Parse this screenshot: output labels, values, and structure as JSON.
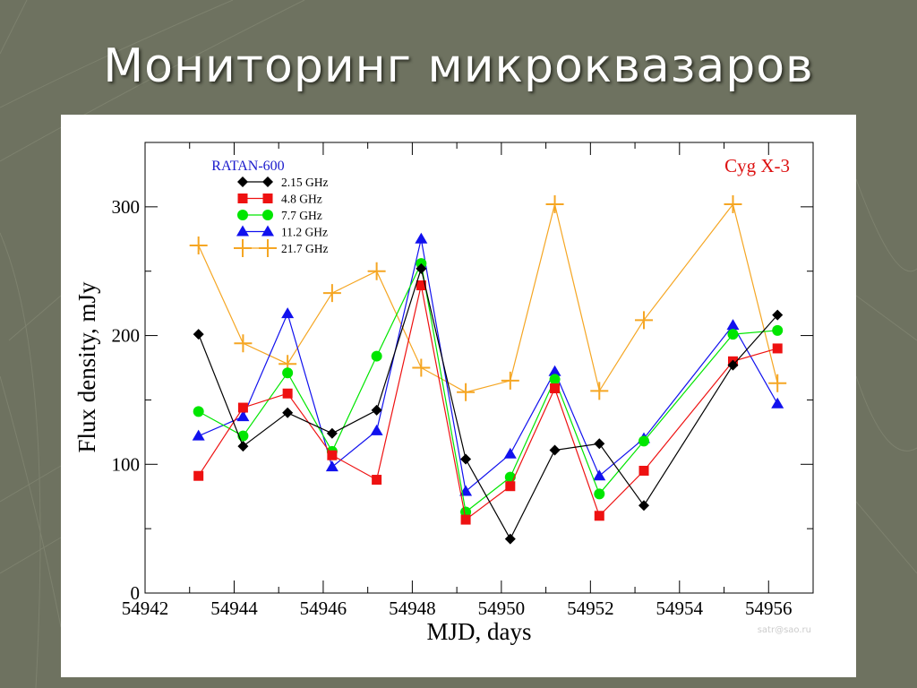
{
  "slide": {
    "title": "Мониторинг микроквазаров"
  },
  "colors": {
    "background": "#6e7260",
    "title_text": "#ffffff",
    "panel": "#ffffff"
  },
  "chart_data": {
    "type": "line",
    "source_label": "RATAN-600",
    "object_label": "Cyg X-3",
    "xlabel": "MJD, days",
    "ylabel": "Flux density, mJy",
    "xlim": [
      54942,
      54957
    ],
    "ylim": [
      0,
      350
    ],
    "x_ticks": [
      54942,
      54944,
      54946,
      54948,
      54950,
      54952,
      54954,
      54956
    ],
    "y_ticks": [
      0,
      100,
      200,
      300
    ],
    "watermark": "satr@sao.ru",
    "legend_position": "top-left",
    "grid": false,
    "series": [
      {
        "name": "2.15 GHz",
        "color": "#000000",
        "marker": "diamond",
        "x": [
          54943.2,
          54944.2,
          54945.2,
          54946.2,
          54947.2,
          54948.2,
          54949.2,
          54950.2,
          54951.2,
          54952.2,
          54953.2,
          54955.2,
          54956.2
        ],
        "y": [
          201,
          114,
          140,
          124,
          142,
          252,
          104,
          42,
          111,
          116,
          68,
          177,
          216
        ]
      },
      {
        "name": "4.8 GHz",
        "color": "#ee1111",
        "marker": "square",
        "x": [
          54943.2,
          54944.2,
          54945.2,
          54946.2,
          54947.2,
          54948.2,
          54949.2,
          54950.2,
          54951.2,
          54952.2,
          54953.2,
          54955.2,
          54956.2
        ],
        "y": [
          91,
          144,
          155,
          107,
          88,
          239,
          57,
          83,
          159,
          60,
          95,
          180,
          190
        ]
      },
      {
        "name": "7.7 GHz",
        "color": "#00e600",
        "marker": "circle",
        "x": [
          54943.2,
          54944.2,
          54945.2,
          54946.2,
          54947.2,
          54948.2,
          54949.2,
          54950.2,
          54951.2,
          54952.2,
          54953.2,
          54955.2,
          54956.2
        ],
        "y": [
          141,
          122,
          171,
          110,
          184,
          256,
          63,
          90,
          166,
          77,
          118,
          201,
          204
        ]
      },
      {
        "name": "11.2 GHz",
        "color": "#1111ee",
        "marker": "triangle",
        "x": [
          54943.2,
          54944.2,
          54945.2,
          54946.2,
          54947.2,
          54948.2,
          54949.2,
          54950.2,
          54951.2,
          54952.2,
          54953.2,
          54955.2,
          54956.2
        ],
        "y": [
          122,
          137,
          217,
          98,
          126,
          275,
          79,
          108,
          172,
          91,
          120,
          208,
          147
        ]
      },
      {
        "name": "21.7 GHz",
        "color": "#f5a623",
        "marker": "plus",
        "x": [
          54943.2,
          54944.2,
          54945.2,
          54946.2,
          54947.2,
          54948.2,
          54949.2,
          54950.2,
          54951.2,
          54952.2,
          54953.2,
          54955.2,
          54956.2
        ],
        "y": [
          270,
          194,
          178,
          233,
          250,
          175,
          156,
          165,
          302,
          157,
          212,
          302,
          163
        ]
      }
    ]
  }
}
